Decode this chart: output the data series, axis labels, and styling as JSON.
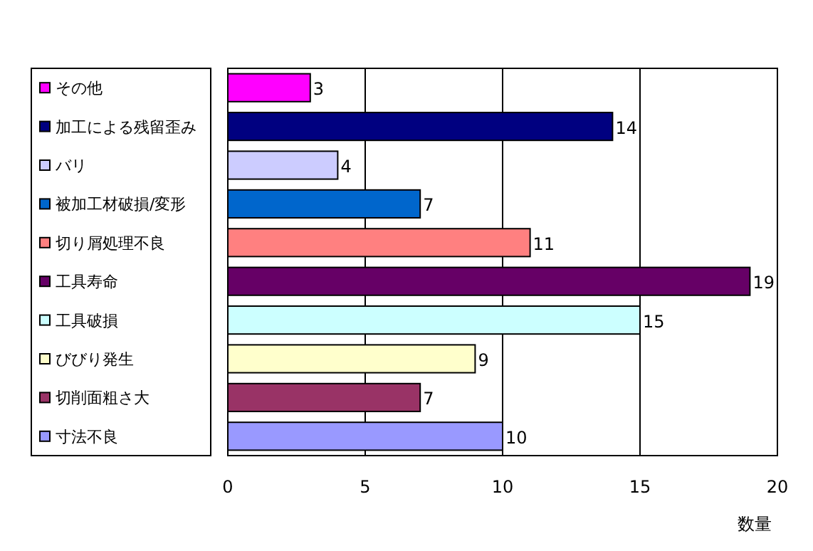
{
  "chart_data": {
    "type": "bar",
    "orientation": "horizontal",
    "xlabel": "数量",
    "categories": [
      "その他",
      "加工による残留歪み",
      "バリ",
      "被加工材破損/変形",
      "切り屑処理不良",
      "工具寿命",
      "工具破損",
      "びびり発生",
      "切削面粗さ大",
      "寸法不良"
    ],
    "values": [
      3,
      14,
      4,
      7,
      11,
      19,
      15,
      9,
      7,
      10
    ],
    "colors": [
      "#ff00ff",
      "#000080",
      "#ccccff",
      "#0066cc",
      "#ff8080",
      "#660066",
      "#ccffff",
      "#ffffcc",
      "#993366",
      "#9999ff"
    ],
    "xlim": [
      0,
      20
    ],
    "xticks": [
      0,
      5,
      10,
      15,
      20
    ],
    "grid": "x",
    "data_labels": true
  }
}
